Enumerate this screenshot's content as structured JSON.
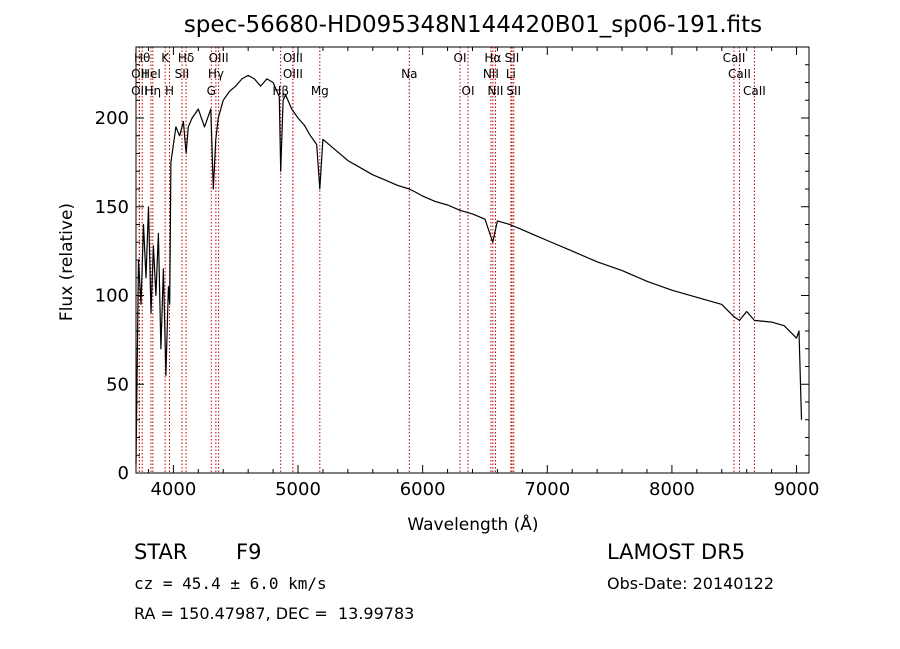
{
  "chart_data": {
    "type": "line",
    "title": "spec-56680-HD095348N144420B01_sp06-191.fits",
    "xlabel": "Wavelength (Å)",
    "ylabel": "Flux (relative)",
    "xlim": [
      3700,
      9100
    ],
    "ylim": [
      0,
      240
    ],
    "xticks": [
      4000,
      5000,
      6000,
      7000,
      8000,
      9000
    ],
    "yticks": [
      0,
      50,
      100,
      150,
      200
    ],
    "grid": false,
    "legend": "none",
    "series_color": "#000000",
    "line_marker_color": "#c00000",
    "series": [
      {
        "x": [
          3700,
          3720,
          3740,
          3760,
          3780,
          3800,
          3820,
          3840,
          3860,
          3880,
          3900,
          3920,
          3940,
          3960,
          3970,
          3980,
          4000,
          4020,
          4050,
          4080,
          4102,
          4120,
          4150,
          4200,
          4250,
          4300,
          4320,
          4340,
          4360,
          4400,
          4450,
          4500,
          4550,
          4600,
          4650,
          4700,
          4750,
          4800,
          4850,
          4861,
          4880,
          4900,
          4950,
          5000,
          5050,
          5100,
          5150,
          5175,
          5200,
          5300,
          5400,
          5500,
          5600,
          5700,
          5800,
          5893,
          5950,
          6000,
          6100,
          6200,
          6300,
          6400,
          6500,
          6563,
          6600,
          6700,
          6800,
          6900,
          7000,
          7200,
          7400,
          7600,
          7800,
          8000,
          8200,
          8400,
          8498,
          8542,
          8600,
          8662,
          8800,
          8900,
          9000,
          9020,
          9040
        ],
        "values": [
          5,
          120,
          95,
          140,
          110,
          150,
          90,
          128,
          100,
          135,
          70,
          115,
          55,
          105,
          95,
          175,
          185,
          195,
          190,
          198,
          180,
          195,
          200,
          205,
          195,
          205,
          160,
          188,
          200,
          210,
          215,
          218,
          222,
          224,
          222,
          218,
          222,
          220,
          212,
          170,
          210,
          213,
          205,
          200,
          196,
          190,
          185,
          160,
          188,
          182,
          176,
          172,
          168,
          165,
          162,
          160,
          158,
          156,
          153,
          151,
          148,
          146,
          143,
          130,
          142,
          140,
          137,
          134,
          131,
          125,
          119,
          114,
          108,
          103,
          99,
          95,
          88,
          86,
          91,
          86,
          85,
          83,
          76,
          80,
          30
        ]
      }
    ],
    "spectral_lines": [
      {
        "label": "Hθ",
        "x": 3750,
        "row": 1
      },
      {
        "label": "OII",
        "x": 3727,
        "row": 2
      },
      {
        "label": "OII",
        "x": 3727,
        "row": 3
      },
      {
        "label": "HeI",
        "x": 3820,
        "row": 2
      },
      {
        "label": "Hη",
        "x": 3835,
        "row": 3
      },
      {
        "label": "K",
        "x": 3934,
        "row": 1
      },
      {
        "label": "H",
        "x": 3969,
        "row": 3
      },
      {
        "label": "SII",
        "x": 4069,
        "row": 2
      },
      {
        "label": "Hδ",
        "x": 4102,
        "row": 1
      },
      {
        "label": "OIII",
        "x": 4363,
        "row": 1
      },
      {
        "label": "Hγ",
        "x": 4341,
        "row": 2
      },
      {
        "label": "G",
        "x": 4304,
        "row": 3
      },
      {
        "label": "OIII",
        "x": 4959,
        "row": 1
      },
      {
        "label": "OIII",
        "x": 4959,
        "row": 2
      },
      {
        "label": "Hβ",
        "x": 4861,
        "row": 3
      },
      {
        "label": "Mg",
        "x": 5175,
        "row": 3
      },
      {
        "label": "Na",
        "x": 5893,
        "row": 2
      },
      {
        "label": "OI",
        "x": 6300,
        "row": 1
      },
      {
        "label": "OI",
        "x": 6364,
        "row": 3
      },
      {
        "label": "Hα",
        "x": 6563,
        "row": 1
      },
      {
        "label": "NII",
        "x": 6548,
        "row": 2
      },
      {
        "label": "NII",
        "x": 6584,
        "row": 3
      },
      {
        "label": "SII",
        "x": 6717,
        "row": 1
      },
      {
        "label": "Li",
        "x": 6708,
        "row": 2
      },
      {
        "label": "SII",
        "x": 6731,
        "row": 3
      },
      {
        "label": "CaII",
        "x": 8498,
        "row": 1
      },
      {
        "label": "CaII",
        "x": 8542,
        "row": 2
      },
      {
        "label": "CaII",
        "x": 8662,
        "row": 3
      }
    ]
  },
  "info": {
    "object_type": "STAR",
    "spectral_class": "F9",
    "survey": "LAMOST DR5",
    "cz": "cz = 45.4 ± 6.0 km/s",
    "obs_date": "Obs-Date: 20140122",
    "coords": "RA = 150.47987, DEC =  13.99783"
  }
}
